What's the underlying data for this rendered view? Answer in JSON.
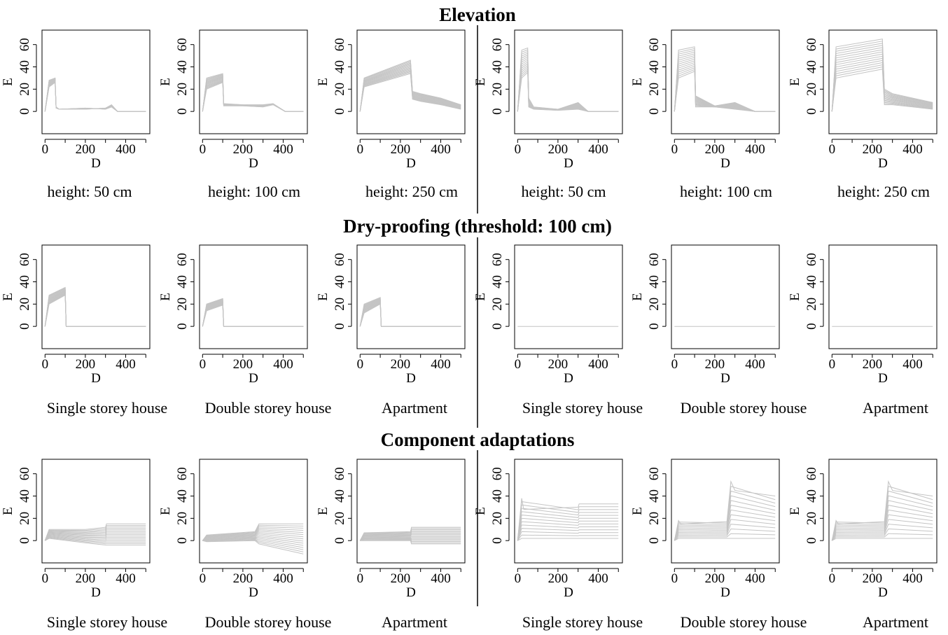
{
  "sections": [
    {
      "title": "Elevation",
      "captions": [
        "height: 50 cm",
        "height: 100 cm",
        "height: 250 cm",
        "height: 50 cm",
        "height: 100 cm",
        "height: 250 cm"
      ]
    },
    {
      "title": "Dry-proofing (threshold: 100 cm)",
      "captions": [
        "Single storey house",
        "Double storey house",
        "Apartment",
        "Single storey house",
        "Double storey house",
        "Apartment"
      ]
    },
    {
      "title": "Component adaptations",
      "captions": [
        "Single storey house",
        "Double storey house",
        "Apartment",
        "Single storey house",
        "Double storey house",
        "Apartment"
      ]
    }
  ],
  "axes": {
    "xlabel": "D",
    "ylabel": "E",
    "xticks": [
      "0",
      "200",
      "400"
    ],
    "yticks": [
      "0",
      "20",
      "40",
      "60"
    ],
    "xlim": [
      -15,
      520
    ],
    "ylim": [
      -20,
      73
    ]
  },
  "colors": {
    "curves": "#c4c4c4",
    "axis": "#000000"
  },
  "chart_data": [
    {
      "type": "line",
      "row": 0,
      "col": 0,
      "xlim": [
        -15,
        520
      ],
      "ylim": [
        -20,
        73
      ],
      "series": [
        {
          "x": [
            0,
            20,
            50,
            55,
            70,
            200,
            300,
            330,
            360,
            500
          ],
          "y": [
            0,
            28,
            30,
            4,
            2,
            2,
            3,
            6,
            0,
            0
          ]
        },
        {
          "x": [
            0,
            20,
            50,
            55,
            70,
            200,
            300,
            330,
            360,
            500
          ],
          "y": [
            0,
            22,
            26,
            3,
            2,
            3,
            2,
            4,
            0,
            0
          ]
        }
      ]
    },
    {
      "type": "line",
      "row": 0,
      "col": 1,
      "xlim": [
        -15,
        520
      ],
      "ylim": [
        -20,
        73
      ],
      "series": [
        {
          "x": [
            0,
            20,
            100,
            105,
            200,
            300,
            350,
            410,
            500
          ],
          "y": [
            0,
            30,
            34,
            7,
            6,
            6,
            7,
            0,
            0
          ]
        },
        {
          "x": [
            0,
            20,
            100,
            105,
            200,
            300,
            350,
            410,
            500
          ],
          "y": [
            0,
            20,
            26,
            5,
            5,
            4,
            6,
            0,
            0
          ]
        }
      ]
    },
    {
      "type": "line",
      "row": 0,
      "col": 2,
      "xlim": [
        -15,
        520
      ],
      "ylim": [
        -20,
        73
      ],
      "series": [
        {
          "x": [
            0,
            20,
            250,
            260,
            300,
            400,
            500
          ],
          "y": [
            0,
            30,
            46,
            18,
            16,
            12,
            6
          ]
        },
        {
          "x": [
            0,
            20,
            250,
            260,
            300,
            400,
            500
          ],
          "y": [
            0,
            22,
            34,
            11,
            9,
            6,
            2
          ]
        }
      ]
    },
    {
      "type": "line",
      "row": 0,
      "col": 3,
      "xlim": [
        -15,
        520
      ],
      "ylim": [
        -20,
        73
      ],
      "series": [
        {
          "x": [
            0,
            20,
            50,
            55,
            80,
            200,
            300,
            350,
            500
          ],
          "y": [
            0,
            55,
            57,
            12,
            4,
            2,
            8,
            0,
            0
          ]
        },
        {
          "x": [
            0,
            20,
            50,
            55,
            80,
            200,
            300,
            350,
            500
          ],
          "y": [
            0,
            30,
            35,
            4,
            2,
            1,
            2,
            0,
            0
          ]
        }
      ]
    },
    {
      "type": "line",
      "row": 0,
      "col": 4,
      "xlim": [
        -15,
        520
      ],
      "ylim": [
        -20,
        73
      ],
      "series": [
        {
          "x": [
            0,
            20,
            100,
            105,
            200,
            300,
            400,
            500
          ],
          "y": [
            0,
            55,
            58,
            14,
            5,
            8,
            0,
            0
          ]
        },
        {
          "x": [
            0,
            20,
            100,
            105,
            200,
            300,
            400,
            500
          ],
          "y": [
            0,
            30,
            36,
            4,
            4,
            2,
            0,
            0
          ]
        }
      ]
    },
    {
      "type": "line",
      "row": 0,
      "col": 5,
      "xlim": [
        -15,
        520
      ],
      "ylim": [
        -20,
        73
      ],
      "series": [
        {
          "x": [
            0,
            20,
            250,
            260,
            300,
            400,
            500
          ],
          "y": [
            0,
            58,
            65,
            20,
            16,
            12,
            8
          ]
        },
        {
          "x": [
            0,
            20,
            250,
            260,
            300,
            400,
            500
          ],
          "y": [
            0,
            30,
            38,
            6,
            6,
            4,
            2
          ]
        }
      ]
    },
    {
      "type": "line",
      "row": 1,
      "col": 0,
      "xlim": [
        -15,
        520
      ],
      "ylim": [
        -20,
        73
      ],
      "series": [
        {
          "x": [
            0,
            20,
            100,
            105,
            500
          ],
          "y": [
            0,
            28,
            35,
            0,
            0
          ]
        },
        {
          "x": [
            0,
            20,
            100,
            105,
            500
          ],
          "y": [
            0,
            20,
            28,
            0,
            0
          ]
        }
      ]
    },
    {
      "type": "line",
      "row": 1,
      "col": 1,
      "xlim": [
        -15,
        520
      ],
      "ylim": [
        -20,
        73
      ],
      "series": [
        {
          "x": [
            0,
            20,
            100,
            105,
            500
          ],
          "y": [
            0,
            20,
            25,
            0,
            0
          ]
        },
        {
          "x": [
            0,
            20,
            100,
            105,
            500
          ],
          "y": [
            0,
            14,
            19,
            0,
            0
          ]
        }
      ]
    },
    {
      "type": "line",
      "row": 1,
      "col": 2,
      "xlim": [
        -15,
        520
      ],
      "ylim": [
        -20,
        73
      ],
      "series": [
        {
          "x": [
            0,
            20,
            100,
            105,
            500
          ],
          "y": [
            0,
            20,
            26,
            0,
            0
          ]
        },
        {
          "x": [
            0,
            20,
            100,
            105,
            500
          ],
          "y": [
            0,
            12,
            20,
            0,
            0
          ]
        }
      ]
    },
    {
      "type": "line",
      "row": 1,
      "col": 3,
      "xlim": [
        -15,
        520
      ],
      "ylim": [
        -20,
        73
      ],
      "series": [
        {
          "x": [
            0,
            500
          ],
          "y": [
            0,
            0
          ]
        }
      ]
    },
    {
      "type": "line",
      "row": 1,
      "col": 4,
      "xlim": [
        -15,
        520
      ],
      "ylim": [
        -20,
        73
      ],
      "series": [
        {
          "x": [
            0,
            500
          ],
          "y": [
            0,
            0
          ]
        }
      ]
    },
    {
      "type": "line",
      "row": 1,
      "col": 5,
      "xlim": [
        -15,
        520
      ],
      "ylim": [
        -20,
        73
      ],
      "series": [
        {
          "x": [
            0,
            500
          ],
          "y": [
            0,
            0
          ]
        }
      ]
    },
    {
      "type": "line",
      "row": 2,
      "col": 0,
      "xlim": [
        -15,
        520
      ],
      "ylim": [
        -20,
        73
      ],
      "series": [
        {
          "x": [
            0,
            20,
            200,
            300,
            305,
            500
          ],
          "y": [
            0,
            10,
            10,
            12,
            15,
            15
          ]
        },
        {
          "x": [
            0,
            20,
            200,
            300,
            305,
            500
          ],
          "y": [
            0,
            2,
            -2,
            -4,
            -4,
            -4
          ]
        }
      ]
    },
    {
      "type": "line",
      "row": 2,
      "col": 1,
      "xlim": [
        -15,
        520
      ],
      "ylim": [
        -20,
        73
      ],
      "series": [
        {
          "x": [
            0,
            20,
            260,
            280,
            500
          ],
          "y": [
            0,
            5,
            8,
            15,
            15
          ]
        },
        {
          "x": [
            0,
            20,
            260,
            280,
            500
          ],
          "y": [
            0,
            -1,
            0,
            -3,
            -12
          ]
        }
      ]
    },
    {
      "type": "line",
      "row": 2,
      "col": 2,
      "xlim": [
        -15,
        520
      ],
      "ylim": [
        -20,
        73
      ],
      "series": [
        {
          "x": [
            0,
            20,
            250,
            255,
            500
          ],
          "y": [
            0,
            7,
            8,
            12,
            12
          ]
        },
        {
          "x": [
            0,
            20,
            250,
            255,
            500
          ],
          "y": [
            0,
            0,
            0,
            -3,
            -3
          ]
        }
      ]
    },
    {
      "type": "line",
      "row": 2,
      "col": 3,
      "xlim": [
        -15,
        520
      ],
      "ylim": [
        -20,
        73
      ],
      "series": [
        {
          "x": [
            0,
            20,
            30,
            300,
            305,
            500
          ],
          "y": [
            0,
            38,
            28,
            30,
            33,
            33
          ]
        },
        {
          "x": [
            0,
            20,
            300,
            305,
            500
          ],
          "y": [
            0,
            2,
            2,
            2,
            2
          ]
        }
      ]
    },
    {
      "type": "line",
      "row": 2,
      "col": 4,
      "xlim": [
        -15,
        520
      ],
      "ylim": [
        -20,
        73
      ],
      "series": [
        {
          "x": [
            0,
            20,
            30,
            260,
            280,
            300,
            500
          ],
          "y": [
            0,
            18,
            15,
            17,
            53,
            45,
            40
          ]
        },
        {
          "x": [
            0,
            20,
            260,
            280,
            500
          ],
          "y": [
            0,
            2,
            2,
            2,
            2
          ]
        }
      ]
    },
    {
      "type": "line",
      "row": 2,
      "col": 5,
      "xlim": [
        -15,
        520
      ],
      "ylim": [
        -20,
        73
      ],
      "series": [
        {
          "x": [
            0,
            20,
            30,
            260,
            280,
            300,
            500
          ],
          "y": [
            0,
            18,
            15,
            17,
            53,
            45,
            40
          ]
        },
        {
          "x": [
            0,
            20,
            260,
            280,
            500
          ],
          "y": [
            0,
            2,
            2,
            2,
            2
          ]
        }
      ]
    }
  ]
}
